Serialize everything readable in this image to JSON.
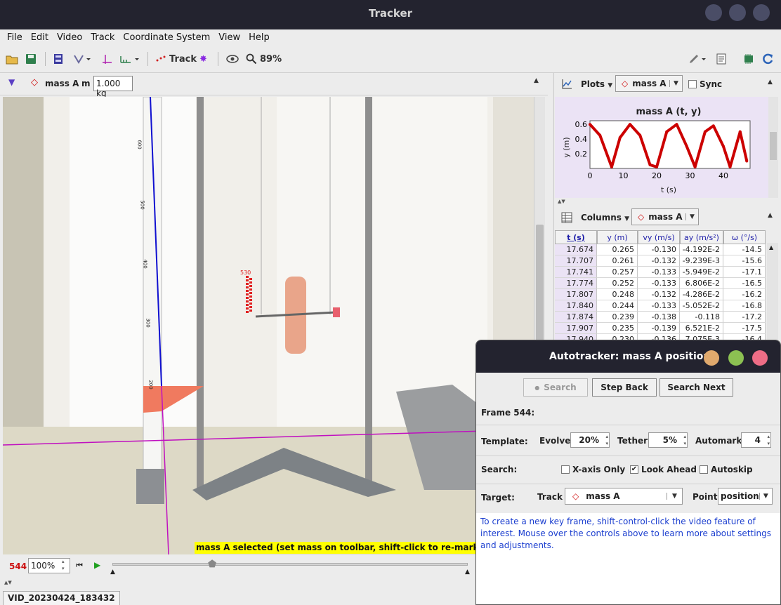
{
  "window": {
    "title": "Tracker"
  },
  "menu": [
    "File",
    "Edit",
    "Video",
    "Track",
    "Coordinate System",
    "View",
    "Help"
  ],
  "toolbar": {
    "track_label": "Track",
    "zoom_label": "89%"
  },
  "trackbar": {
    "track_name": "mass A",
    "mass_label": "m",
    "mass_value": "1.000 kg"
  },
  "video": {
    "ruler_marks": [
      "600",
      "500",
      "400",
      "300",
      "200"
    ],
    "mark_label": "530"
  },
  "status": {
    "message": "mass A selected (set mass on toolbar, shift-click to re-mark highlig"
  },
  "player": {
    "frame": "544",
    "zoom": "100%"
  },
  "file_tab": "VID_20230424_183432",
  "plot": {
    "toolbar_label": "Plots",
    "track": "mass A",
    "sync_label": "Sync",
    "title": "mass A (t, y)",
    "ylabel": "y (m)",
    "xlabel": "t (s)"
  },
  "chart_data": {
    "type": "line",
    "title": "mass A (t, y)",
    "xlabel": "t (s)",
    "ylabel": "y (m)",
    "xlim": [
      0,
      48
    ],
    "ylim": [
      0,
      0.65
    ],
    "xticks": [
      0,
      10,
      20,
      30,
      40
    ],
    "yticks": [
      0.2,
      0.4,
      0.6
    ],
    "color": "#cc0000",
    "x": [
      0,
      3,
      6.5,
      9,
      12,
      15,
      18,
      20,
      23,
      26,
      29,
      31.5,
      34.5,
      37,
      40,
      42,
      45,
      47
    ],
    "y": [
      0.6,
      0.45,
      0.02,
      0.42,
      0.6,
      0.45,
      0.05,
      0.02,
      0.5,
      0.6,
      0.3,
      0.02,
      0.5,
      0.58,
      0.3,
      0.02,
      0.5,
      0.1
    ]
  },
  "table": {
    "toolbar_label": "Columns",
    "track": "mass A",
    "headers": [
      "t (s)",
      "y (m)",
      "vy (m/s)",
      "ay (m/s²)",
      "ω (°/s)"
    ],
    "rows": [
      [
        "17.674",
        "0.265",
        "-0.130",
        "-4.192E-2",
        "-14.5"
      ],
      [
        "17.707",
        "0.261",
        "-0.132",
        "-9.239E-3",
        "-15.6"
      ],
      [
        "17.741",
        "0.257",
        "-0.133",
        "-5.949E-2",
        "-17.1"
      ],
      [
        "17.774",
        "0.252",
        "-0.133",
        "6.806E-2",
        "-16.5"
      ],
      [
        "17.807",
        "0.248",
        "-0.132",
        "-4.286E-2",
        "-16.2"
      ],
      [
        "17.840",
        "0.244",
        "-0.133",
        "-5.052E-2",
        "-16.8"
      ],
      [
        "17.874",
        "0.239",
        "-0.138",
        "-0.118",
        "-17.2"
      ],
      [
        "17.907",
        "0.235",
        "-0.139",
        "6.521E-2",
        "-17.5"
      ],
      [
        "17.940",
        "0.230",
        "-0.136",
        "7.075E-3",
        "-16.4"
      ]
    ]
  },
  "autotracker": {
    "title": "Autotracker: mass A position",
    "search_btn": "Search",
    "step_back_btn": "Step Back",
    "search_next_btn": "Search Next",
    "frame_label": "Frame 544:",
    "template_label": "Template:",
    "evolve_label": "Evolve",
    "evolve_value": "20%",
    "tether_label": "Tether",
    "tether_value": "5%",
    "automark_label": "Automark",
    "automark_value": "4",
    "search_label": "Search:",
    "xaxis_only": "X-axis Only",
    "look_ahead": "Look Ahead",
    "autoskip": "Autoskip",
    "target_label": "Target:",
    "track_label": "Track",
    "track_value": "mass A",
    "point_label": "Point",
    "point_value": "position",
    "info_text": "To create a new key frame, shift-control-click the video feature of interest. Mouse over the controls above to learn more about settings and adjustments."
  }
}
